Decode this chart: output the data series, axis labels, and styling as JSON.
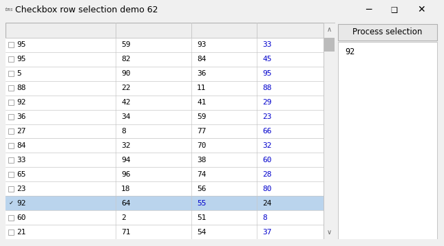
{
  "title": "Checkbox row selection demo 62",
  "window_bg": "#f0f0f0",
  "grid_bg": "#ffffff",
  "header_bg": "#eeeeee",
  "selected_bg": "#bad4ed",
  "normal_text": "#000000",
  "blue_text": "#0000cc",
  "grid_line_color": "#c8c8c8",
  "button_text": "Process selection",
  "right_panel_text": "92",
  "rows": [
    {
      "checked": false,
      "col1": "95",
      "col2": "59",
      "col3": "93",
      "col4": "33",
      "selected": false,
      "col4_blue": true
    },
    {
      "checked": false,
      "col1": "95",
      "col2": "82",
      "col3": "84",
      "col4": "45",
      "selected": false,
      "col4_blue": true
    },
    {
      "checked": false,
      "col1": "5",
      "col2": "90",
      "col3": "36",
      "col4": "95",
      "selected": false,
      "col4_blue": true
    },
    {
      "checked": false,
      "col1": "88",
      "col2": "22",
      "col3": "11",
      "col4": "88",
      "selected": false,
      "col4_blue": true
    },
    {
      "checked": false,
      "col1": "92",
      "col2": "42",
      "col3": "41",
      "col4": "29",
      "selected": false,
      "col4_blue": true
    },
    {
      "checked": false,
      "col1": "36",
      "col2": "34",
      "col3": "59",
      "col4": "23",
      "selected": false,
      "col4_blue": true
    },
    {
      "checked": false,
      "col1": "27",
      "col2": "8",
      "col3": "77",
      "col4": "66",
      "selected": false,
      "col4_blue": true
    },
    {
      "checked": false,
      "col1": "84",
      "col2": "32",
      "col3": "70",
      "col4": "32",
      "selected": false,
      "col4_blue": true
    },
    {
      "checked": false,
      "col1": "33",
      "col2": "94",
      "col3": "38",
      "col4": "60",
      "selected": false,
      "col4_blue": true
    },
    {
      "checked": false,
      "col1": "65",
      "col2": "96",
      "col3": "74",
      "col4": "28",
      "selected": false,
      "col4_blue": true
    },
    {
      "checked": false,
      "col1": "23",
      "col2": "18",
      "col3": "56",
      "col4": "80",
      "selected": false,
      "col4_blue": true
    },
    {
      "checked": true,
      "col1": "92",
      "col2": "64",
      "col3": "55",
      "col4": "24",
      "selected": true,
      "col4_blue": false
    },
    {
      "checked": false,
      "col1": "60",
      "col2": "2",
      "col3": "51",
      "col4": "8",
      "selected": false,
      "col4_blue": true
    },
    {
      "checked": false,
      "col1": "21",
      "col2": "71",
      "col3": "54",
      "col4": "37",
      "selected": false,
      "col4_blue": true
    }
  ]
}
